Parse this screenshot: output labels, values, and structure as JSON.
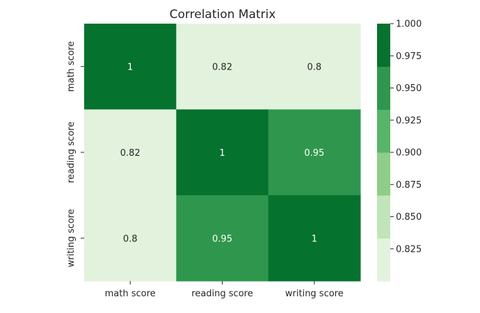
{
  "chart_data": {
    "type": "heatmap",
    "title": "Correlation Matrix",
    "x_categories": [
      "math score",
      "reading score",
      "writing score"
    ],
    "y_categories": [
      "math score",
      "reading score",
      "writing score"
    ],
    "values": [
      [
        1.0,
        0.82,
        0.8
      ],
      [
        0.82,
        1.0,
        0.95
      ],
      [
        0.8,
        0.95,
        1.0
      ]
    ],
    "cell_labels": [
      [
        "1",
        "0.82",
        "0.8"
      ],
      [
        "0.82",
        "1",
        "0.95"
      ],
      [
        "0.8",
        "0.95",
        "1"
      ]
    ],
    "colorbar": {
      "range": [
        0.8,
        1.0
      ],
      "ticks": [
        0.825,
        0.85,
        0.875,
        0.9,
        0.925,
        0.95,
        0.975,
        1.0
      ],
      "tick_labels": [
        "0.825",
        "0.850",
        "0.875",
        "0.900",
        "0.925",
        "0.950",
        "0.975",
        "1.000"
      ],
      "band_colors": [
        "#e2f2dc",
        "#c0e5b8",
        "#8ece88",
        "#57b568",
        "#2f974d",
        "#05722e"
      ],
      "band_edges": [
        0.8,
        0.8333,
        0.8667,
        0.9,
        0.9333,
        0.9667,
        1.0
      ]
    },
    "colormap": "Greens",
    "text_color_dark": "#262626",
    "text_color_light": "#ffffff"
  }
}
